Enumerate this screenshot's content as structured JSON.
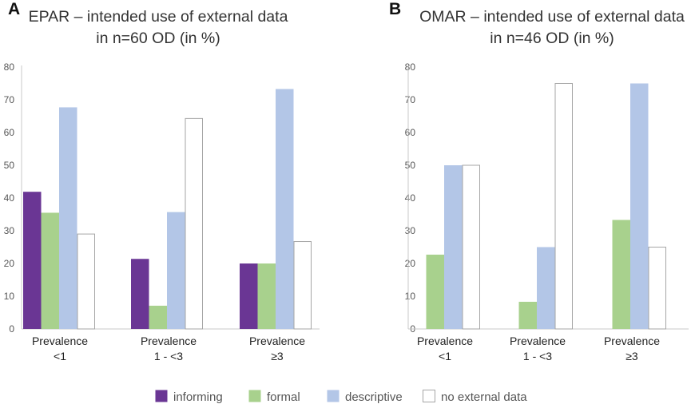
{
  "legend": [
    {
      "name": "informing",
      "color": "#6a3694",
      "stroke": "#6a3694"
    },
    {
      "name": "formal",
      "color": "#a8d18d",
      "stroke": "#a8d18d"
    },
    {
      "name": "descriptive",
      "color": "#b3c6e7",
      "stroke": "#b3c6e7"
    },
    {
      "name": "no external data",
      "color": "#ffffff",
      "stroke": "#a6a6a6"
    }
  ],
  "chart_data": [
    {
      "type": "bar",
      "panel": "A",
      "title": [
        "EPAR – intended use of external data",
        "in n=60 OD (in %)"
      ],
      "categories": [
        [
          "Prevalence",
          "<1"
        ],
        [
          "Prevalence",
          "1 - <3"
        ],
        [
          "Prevalence",
          "≥3"
        ]
      ],
      "ylim": [
        0,
        80
      ],
      "yticks": [
        0,
        10,
        20,
        30,
        40,
        50,
        60,
        70,
        80
      ],
      "grid": false,
      "series": [
        {
          "name": "informing",
          "values": [
            41.9,
            21.4,
            20.0
          ]
        },
        {
          "name": "formal",
          "values": [
            35.5,
            7.1,
            20.0
          ]
        },
        {
          "name": "descriptive",
          "values": [
            67.7,
            35.7,
            73.3
          ]
        },
        {
          "name": "no external data",
          "values": [
            29.0,
            64.3,
            26.7
          ]
        }
      ]
    },
    {
      "type": "bar",
      "panel": "B",
      "title": [
        "OMAR – intended use of external data",
        "in n=46 OD (in %)"
      ],
      "categories": [
        [
          "Prevalence",
          "<1"
        ],
        [
          "Prevalence",
          "1 - <3"
        ],
        [
          "Prevalence",
          "≥3"
        ]
      ],
      "ylim": [
        0,
        80
      ],
      "yticks": [
        0,
        10,
        20,
        30,
        40,
        50,
        60,
        70,
        80
      ],
      "grid": false,
      "series": [
        {
          "name": "informing",
          "values": [
            0,
            0,
            0
          ]
        },
        {
          "name": "formal",
          "values": [
            22.7,
            8.3,
            33.3
          ]
        },
        {
          "name": "descriptive",
          "values": [
            50.0,
            25.0,
            75.0
          ]
        },
        {
          "name": "no external data",
          "values": [
            50.0,
            75.0,
            25.0
          ]
        }
      ]
    }
  ]
}
